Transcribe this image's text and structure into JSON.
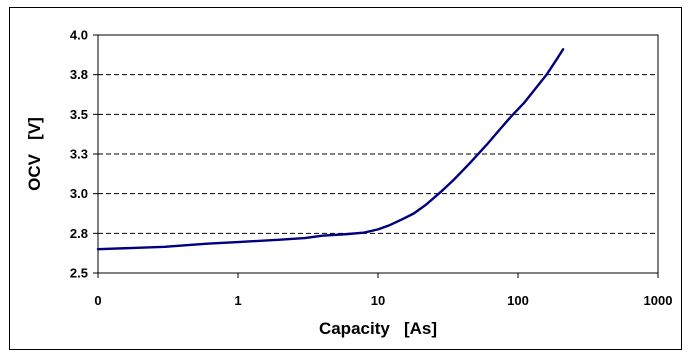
{
  "chart_data": {
    "type": "line",
    "title": "",
    "xlabel": "Capacity   [As]",
    "ylabel": "OCV   [V]",
    "x_scale": "log",
    "x_tick_labels": [
      "0",
      "1",
      "10",
      "100",
      "1000"
    ],
    "x_tick_values": [
      0.1,
      1,
      10,
      100,
      1000
    ],
    "xlim": [
      0.1,
      1000
    ],
    "y_tick_labels": [
      "2.5",
      "2.8",
      "3.0",
      "3.3",
      "3.5",
      "3.8",
      "4.0"
    ],
    "y_tick_values": [
      2.5,
      2.75,
      3.0,
      3.25,
      3.5,
      3.75,
      4.0
    ],
    "ylim": [
      2.5,
      4.0
    ],
    "grid": "horizontal dashed",
    "legend": "none",
    "series": [
      {
        "color": "#000080",
        "points": [
          {
            "x": 0.1,
            "y": 2.65
          },
          {
            "x": 0.3,
            "y": 2.665
          },
          {
            "x": 0.6,
            "y": 2.685
          },
          {
            "x": 1,
            "y": 2.695
          },
          {
            "x": 2,
            "y": 2.71
          },
          {
            "x": 3,
            "y": 2.72
          },
          {
            "x": 4,
            "y": 2.735
          },
          {
            "x": 6,
            "y": 2.745
          },
          {
            "x": 8,
            "y": 2.755
          },
          {
            "x": 10,
            "y": 2.775
          },
          {
            "x": 12,
            "y": 2.8
          },
          {
            "x": 15,
            "y": 2.84
          },
          {
            "x": 18,
            "y": 2.875
          },
          {
            "x": 22,
            "y": 2.93
          },
          {
            "x": 28,
            "y": 3.01
          },
          {
            "x": 35,
            "y": 3.09
          },
          {
            "x": 45,
            "y": 3.19
          },
          {
            "x": 60,
            "y": 3.31
          },
          {
            "x": 75,
            "y": 3.41
          },
          {
            "x": 90,
            "y": 3.49
          },
          {
            "x": 110,
            "y": 3.57
          },
          {
            "x": 130,
            "y": 3.65
          },
          {
            "x": 160,
            "y": 3.75
          },
          {
            "x": 190,
            "y": 3.85
          },
          {
            "x": 210,
            "y": 3.91
          }
        ]
      }
    ]
  }
}
